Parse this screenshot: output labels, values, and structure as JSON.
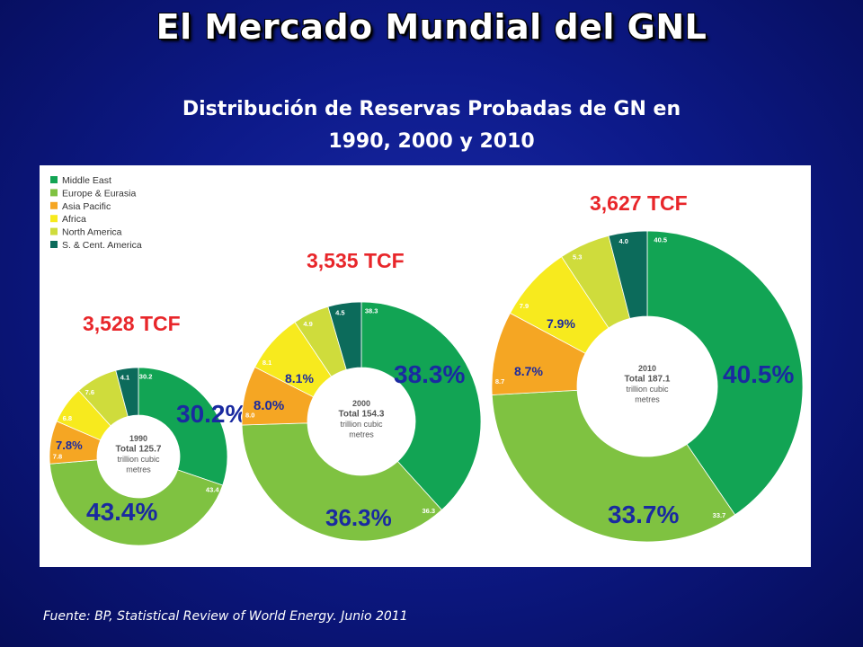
{
  "title": "El Mercado Mundial del GNL",
  "subtitle_line1": "Distribución de Reservas Probadas de GN en",
  "subtitle_line2": "1990, 2000 y 2010",
  "source": "Fuente: BP, Statistical Review of World Energy. Junio 2011",
  "legend_entries": [
    {
      "label": "Middle East",
      "color": "#12a454"
    },
    {
      "label": "Europe & Eurasia",
      "color": "#7fc241"
    },
    {
      "label": "Asia Pacific",
      "color": "#f5a623"
    },
    {
      "label": "Africa",
      "color": "#f7ea1e"
    },
    {
      "label": "North America",
      "color": "#cfdc3c"
    },
    {
      "label": "S. & Cent. America",
      "color": "#0c6b5b"
    }
  ],
  "chart_data": [
    {
      "type": "pie",
      "year": "1990",
      "total_tcf_label": "3,528 TCF",
      "center_lines": [
        "1990",
        "Total 125.7",
        "trillion cubic",
        "metres"
      ],
      "slices": [
        {
          "region": "Middle East",
          "value": 30.2,
          "label": "30.2"
        },
        {
          "region": "Europe & Eurasia",
          "value": 43.4,
          "label": "43.4"
        },
        {
          "region": "Asia Pacific",
          "value": 7.8,
          "label": "7.8"
        },
        {
          "region": "Africa",
          "value": 6.8,
          "label": "6.8"
        },
        {
          "region": "North America",
          "value": 7.6,
          "label": "7.6"
        },
        {
          "region": "S. & Cent. America",
          "value": 4.1,
          "label": "4.1"
        }
      ],
      "callouts": [
        {
          "text": "30.2%",
          "color": "#1a2aa0",
          "size": "large"
        },
        {
          "text": "43.4%",
          "color": "#1a2aa0",
          "size": "large"
        },
        {
          "text": "7.8%",
          "color": "#1a2aa0",
          "size": "small"
        }
      ]
    },
    {
      "type": "pie",
      "year": "2000",
      "total_tcf_label": "3,535 TCF",
      "center_lines": [
        "2000",
        "Total 154.3",
        "trillion cubic",
        "metres"
      ],
      "slices": [
        {
          "region": "Middle East",
          "value": 38.3,
          "label": "38.3"
        },
        {
          "region": "Europe & Eurasia",
          "value": 36.3,
          "label": "36.3"
        },
        {
          "region": "Asia Pacific",
          "value": 8.0,
          "label": "8.0"
        },
        {
          "region": "Africa",
          "value": 8.1,
          "label": "8.1"
        },
        {
          "region": "North America",
          "value": 4.9,
          "label": "4.9"
        },
        {
          "region": "S. & Cent. America",
          "value": 4.5,
          "label": "4.5"
        }
      ],
      "callouts": [
        {
          "text": "38.3%",
          "color": "#1a2aa0",
          "size": "large"
        },
        {
          "text": "36.3%",
          "color": "#1a2aa0",
          "size": "large"
        },
        {
          "text": "8.0%",
          "color": "#1a2aa0",
          "size": "small"
        },
        {
          "text": "8.1%",
          "color": "#1a2aa0",
          "size": "small"
        }
      ]
    },
    {
      "type": "pie",
      "year": "2010",
      "total_tcf_label": "3,627 TCF",
      "center_lines": [
        "2010",
        "Total 187.1",
        "trillion cubic",
        "metres"
      ],
      "slices": [
        {
          "region": "Middle East",
          "value": 40.5,
          "label": "40.5"
        },
        {
          "region": "Europe & Eurasia",
          "value": 33.7,
          "label": "33.7"
        },
        {
          "region": "Asia Pacific",
          "value": 8.7,
          "label": "8.7"
        },
        {
          "region": "Africa",
          "value": 7.9,
          "label": "7.9"
        },
        {
          "region": "North America",
          "value": 5.3,
          "label": "5.3"
        },
        {
          "region": "S. & Cent. America",
          "value": 4.0,
          "label": "4.0"
        }
      ],
      "callouts": [
        {
          "text": "40.5%",
          "color": "#1a2aa0",
          "size": "large"
        },
        {
          "text": "33.7%",
          "color": "#1a2aa0",
          "size": "large"
        },
        {
          "text": "8.7%",
          "color": "#1a2aa0",
          "size": "small"
        },
        {
          "text": "7.9%",
          "color": "#1a2aa0",
          "size": "small"
        }
      ]
    }
  ],
  "total_label_color": "#e8262a"
}
